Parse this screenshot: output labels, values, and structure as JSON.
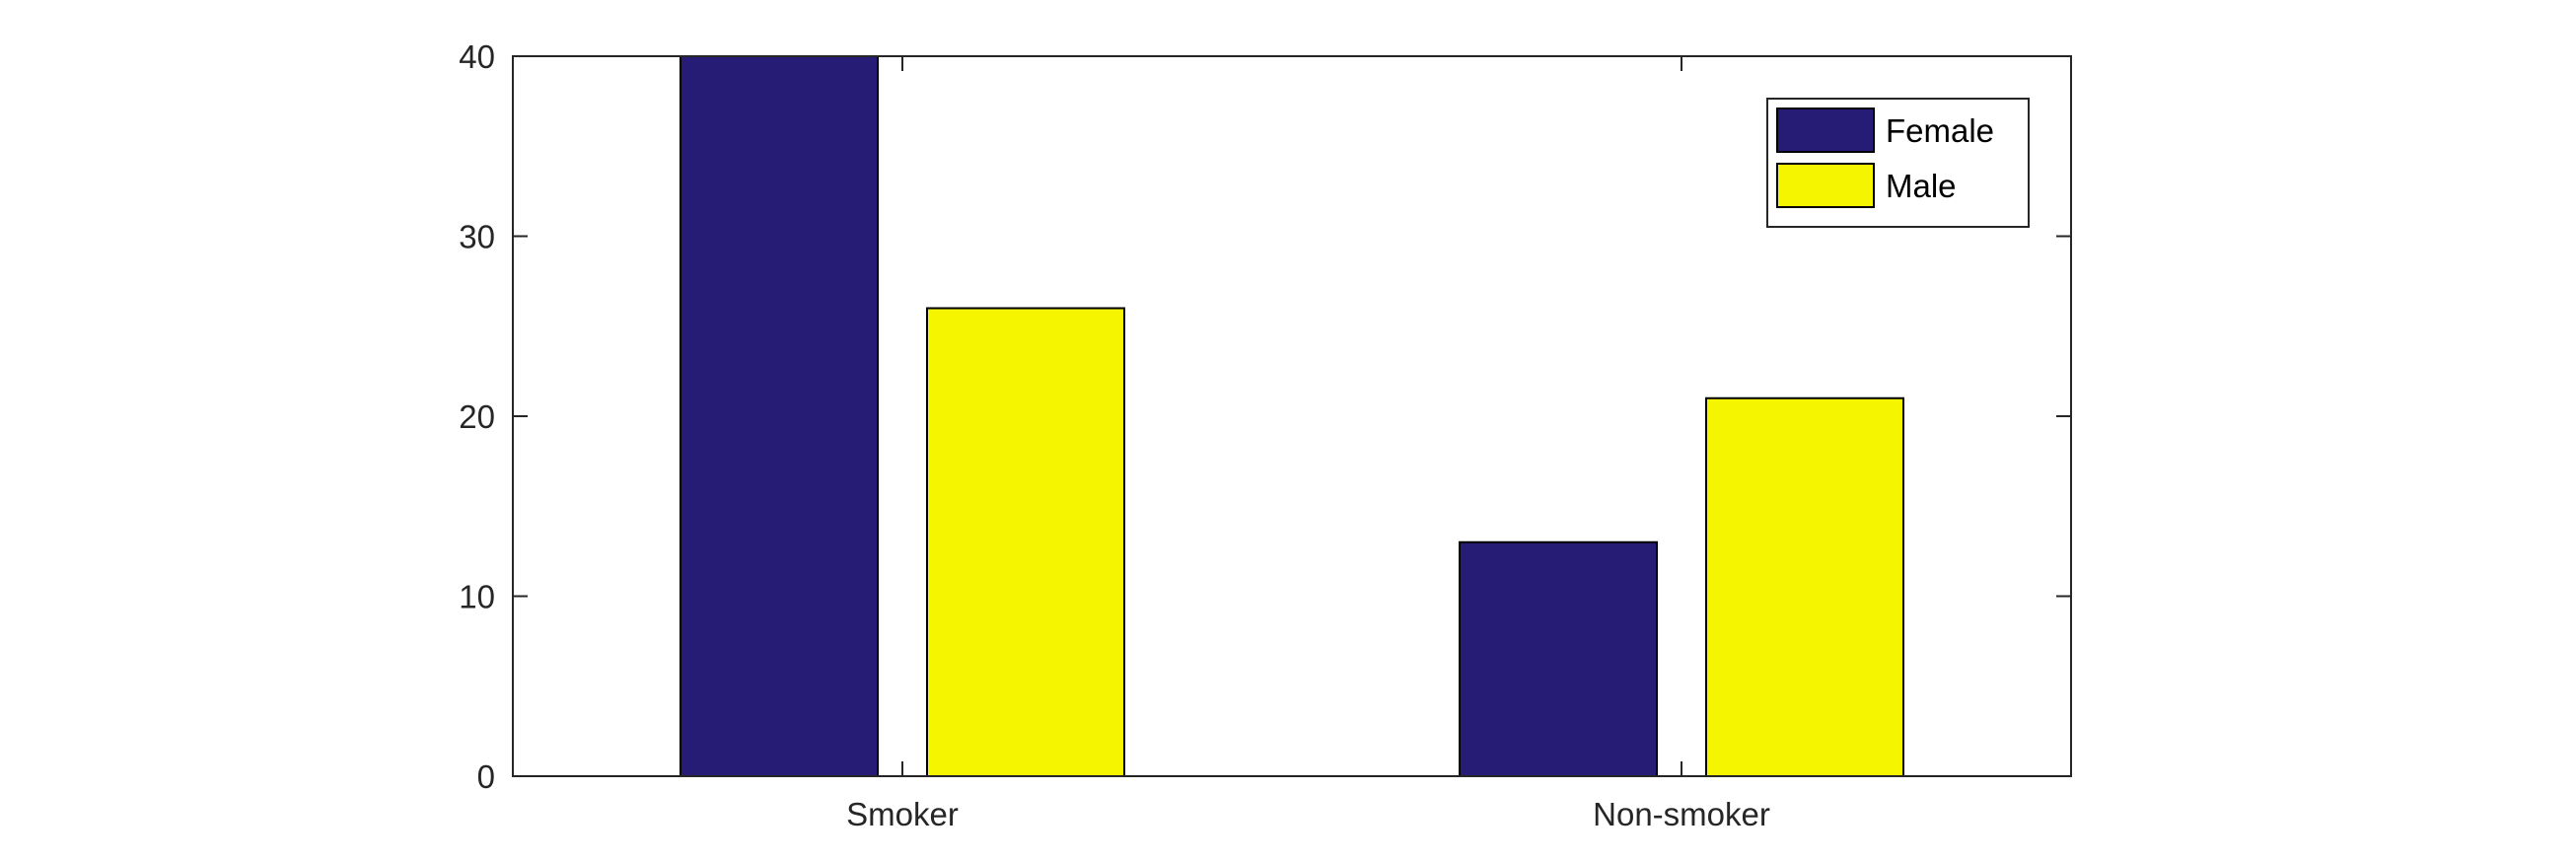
{
  "chart_data": {
    "type": "bar",
    "categories": [
      "Smoker",
      "Non-smoker"
    ],
    "series": [
      {
        "name": "Female",
        "values": [
          40,
          13
        ],
        "color": "#271c75"
      },
      {
        "name": "Male",
        "values": [
          26,
          21
        ],
        "color": "#f5f500"
      }
    ],
    "title": "",
    "xlabel": "",
    "ylabel": "",
    "ylim": [
      0,
      40
    ],
    "yticks": [
      0,
      10,
      20,
      30,
      40
    ],
    "grid": false,
    "legend_position": "top-right",
    "axis_color": "#262626"
  }
}
